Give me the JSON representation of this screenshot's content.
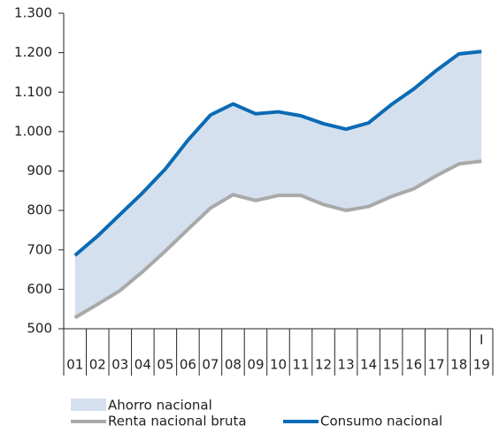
{
  "chart_data": {
    "type": "line",
    "categories": [
      "01",
      "02",
      "03",
      "04",
      "05",
      "06",
      "07",
      "08",
      "09",
      "10",
      "11",
      "12",
      "13",
      "14",
      "15",
      "16",
      "17",
      "18",
      "19"
    ],
    "x_annotation": "I",
    "series": [
      {
        "name": "Consumo nacional",
        "color": "#0b6bb5",
        "values": [
          686,
          735,
          790,
          845,
          905,
          978,
          1042,
          1070,
          1045,
          1050,
          1040,
          1020,
          1006,
          1022,
          1068,
          1108,
          1155,
          1197,
          1203
        ]
      },
      {
        "name": "Renta nacional bruta",
        "color": "#a9a9a9",
        "values": [
          528,
          562,
          597,
          645,
          697,
          752,
          806,
          840,
          825,
          838,
          838,
          815,
          800,
          810,
          835,
          855,
          888,
          918,
          925
        ]
      }
    ],
    "area": {
      "name": "Ahorro nacional",
      "color": "#d5e0ef"
    },
    "ylim": [
      500,
      1300
    ],
    "yticks": [
      500,
      600,
      700,
      800,
      900,
      {
        "value": 1000,
        "label": "1.000"
      },
      {
        "value": 1100,
        "label": "1.100"
      },
      {
        "value": 1200,
        "label": "1.200"
      },
      {
        "value": 1300,
        "label": "1.300"
      }
    ]
  }
}
